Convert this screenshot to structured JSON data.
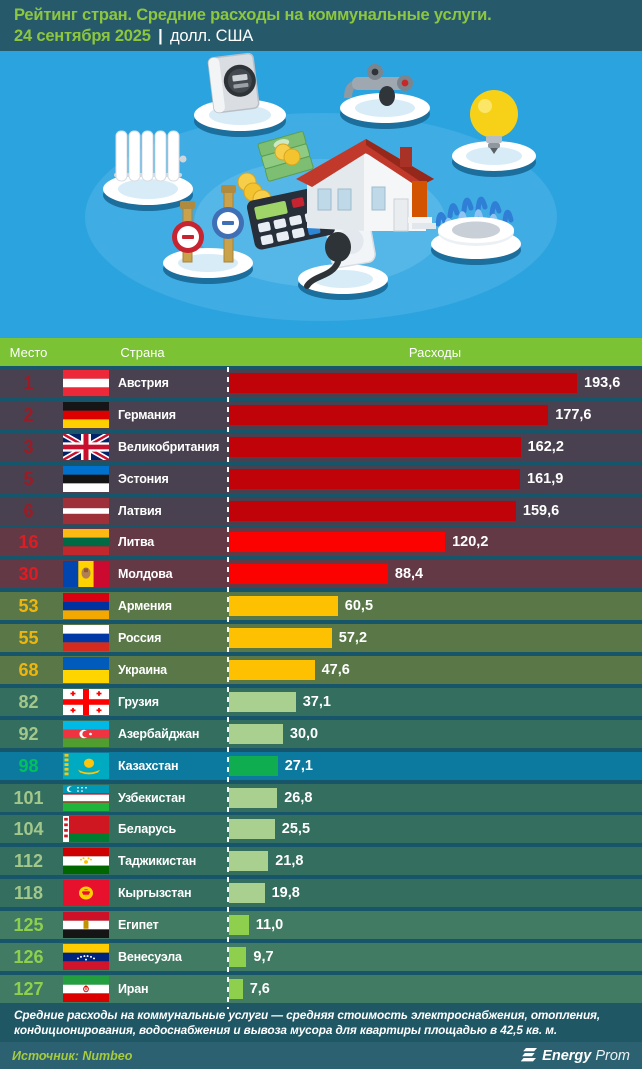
{
  "header": {
    "title": "Рейтинг стран. Средние расходы на коммунальные услуги.",
    "date": "24 сентября 2025",
    "pipe": "|",
    "unit": "долл. США"
  },
  "table": {
    "columns": [
      "Место",
      "Страна",
      "Расходы"
    ]
  },
  "chart_data": {
    "type": "bar",
    "orientation": "horizontal",
    "title": "Рейтинг стран. Средние расходы на коммунальные услуги.",
    "date": "24 сентября 2025",
    "unit": "долл. США",
    "source": "Numbeo",
    "max_value": 193.6,
    "rows": [
      {
        "rank": "1",
        "country": "Австрия",
        "value": 193.6,
        "label": "193,6",
        "flag": "at",
        "group": "g1"
      },
      {
        "rank": "2",
        "country": "Германия",
        "value": 177.6,
        "label": "177,6",
        "flag": "de",
        "group": "g1"
      },
      {
        "rank": "3",
        "country": "Великобритания",
        "value": 162.2,
        "label": "162,2",
        "flag": "gb",
        "group": "g1"
      },
      {
        "rank": "5",
        "country": "Эстония",
        "value": 161.9,
        "label": "161,9",
        "flag": "ee",
        "group": "g1"
      },
      {
        "rank": "6",
        "country": "Латвия",
        "value": 159.6,
        "label": "159,6",
        "flag": "lv",
        "group": "g1"
      },
      {
        "rank": "16",
        "country": "Литва",
        "value": 120.2,
        "label": "120,2",
        "flag": "lt",
        "group": "g2"
      },
      {
        "rank": "30",
        "country": "Молдова",
        "value": 88.4,
        "label": "88,4",
        "flag": "md",
        "group": "g2"
      },
      {
        "rank": "53",
        "country": "Армения",
        "value": 60.5,
        "label": "60,5",
        "flag": "am",
        "group": "g3"
      },
      {
        "rank": "55",
        "country": "Россия",
        "value": 57.2,
        "label": "57,2",
        "flag": "ru",
        "group": "g3"
      },
      {
        "rank": "68",
        "country": "Украина",
        "value": 47.6,
        "label": "47,6",
        "flag": "ua",
        "group": "g3"
      },
      {
        "rank": "82",
        "country": "Грузия",
        "value": 37.1,
        "label": "37,1",
        "flag": "ge",
        "group": "g4"
      },
      {
        "rank": "92",
        "country": "Азербайджан",
        "value": 30.0,
        "label": "30,0",
        "flag": "az",
        "group": "g4"
      },
      {
        "rank": "98",
        "country": "Казахстан",
        "value": 27.1,
        "label": "27,1",
        "flag": "kz",
        "group": "g5"
      },
      {
        "rank": "101",
        "country": "Узбекистан",
        "value": 26.8,
        "label": "26,8",
        "flag": "uz",
        "group": "g4"
      },
      {
        "rank": "104",
        "country": "Беларусь",
        "value": 25.5,
        "label": "25,5",
        "flag": "by",
        "group": "g4"
      },
      {
        "rank": "112",
        "country": "Таджикистан",
        "value": 21.8,
        "label": "21,8",
        "flag": "tj",
        "group": "g4"
      },
      {
        "rank": "118",
        "country": "Кыргызстан",
        "value": 19.8,
        "label": "19,8",
        "flag": "kg",
        "group": "g4"
      },
      {
        "rank": "125",
        "country": "Египет",
        "value": 11.0,
        "label": "11,0",
        "flag": "eg",
        "group": "g6"
      },
      {
        "rank": "126",
        "country": "Венесуэла",
        "value": 9.7,
        "label": "9,7",
        "flag": "ve",
        "group": "g6"
      },
      {
        "rank": "127",
        "country": "Иран",
        "value": 7.6,
        "label": "7,6",
        "flag": "ir",
        "group": "g6"
      }
    ]
  },
  "colors": {
    "page_bg": "#17566a",
    "header_bg": "#265a6b",
    "title_green": "#8dc63f",
    "columns_bar_green": "#7bc235",
    "illustration_bg": "#2ba3df",
    "note_bg": "#1f5765",
    "source_bg": "#2b6170",
    "source_text_green": "#a6cb3f",
    "dashed_line": "#ffffff",
    "groups": {
      "g1": {
        "row_bg": "#494150",
        "bar": "#bf0309",
        "rank": "#9c1b24"
      },
      "g2": {
        "row_bg": "#643946",
        "bar": "#fb0200",
        "rank": "#e11b22"
      },
      "g3": {
        "row_bg": "#597747",
        "bar": "#fdc101",
        "rank": "#edb60e"
      },
      "g4": {
        "row_bg": "#336e5f",
        "bar": "#a9d08e",
        "rank": "#a3c78b"
      },
      "g5": {
        "row_bg": "#0c7a9e",
        "bar": "#10ad50",
        "rank": "#00c15c"
      },
      "g6": {
        "row_bg": "#417b63",
        "bar": "#8ed04e",
        "rank": "#8ed04e"
      }
    }
  },
  "illustration": {
    "icons": [
      "electric-meter-icon",
      "water-tap-icon",
      "light-bulb-icon",
      "radiator-icon",
      "water-meters-icon",
      "power-plug-icon",
      "gas-burner-icon",
      "house-icon",
      "money-icon",
      "calculator-icon"
    ]
  },
  "footer": {
    "note": "Средние расходы на коммунальные услуги — средняя стоимость электроснабжения, отопления, кондиционирования, водоснабжения и вывоза мусора для квартиры площадью в 42,5 кв. м.",
    "source": "Источник: Numbeo",
    "brand_bold": "Energy",
    "brand_light": "Prom"
  }
}
